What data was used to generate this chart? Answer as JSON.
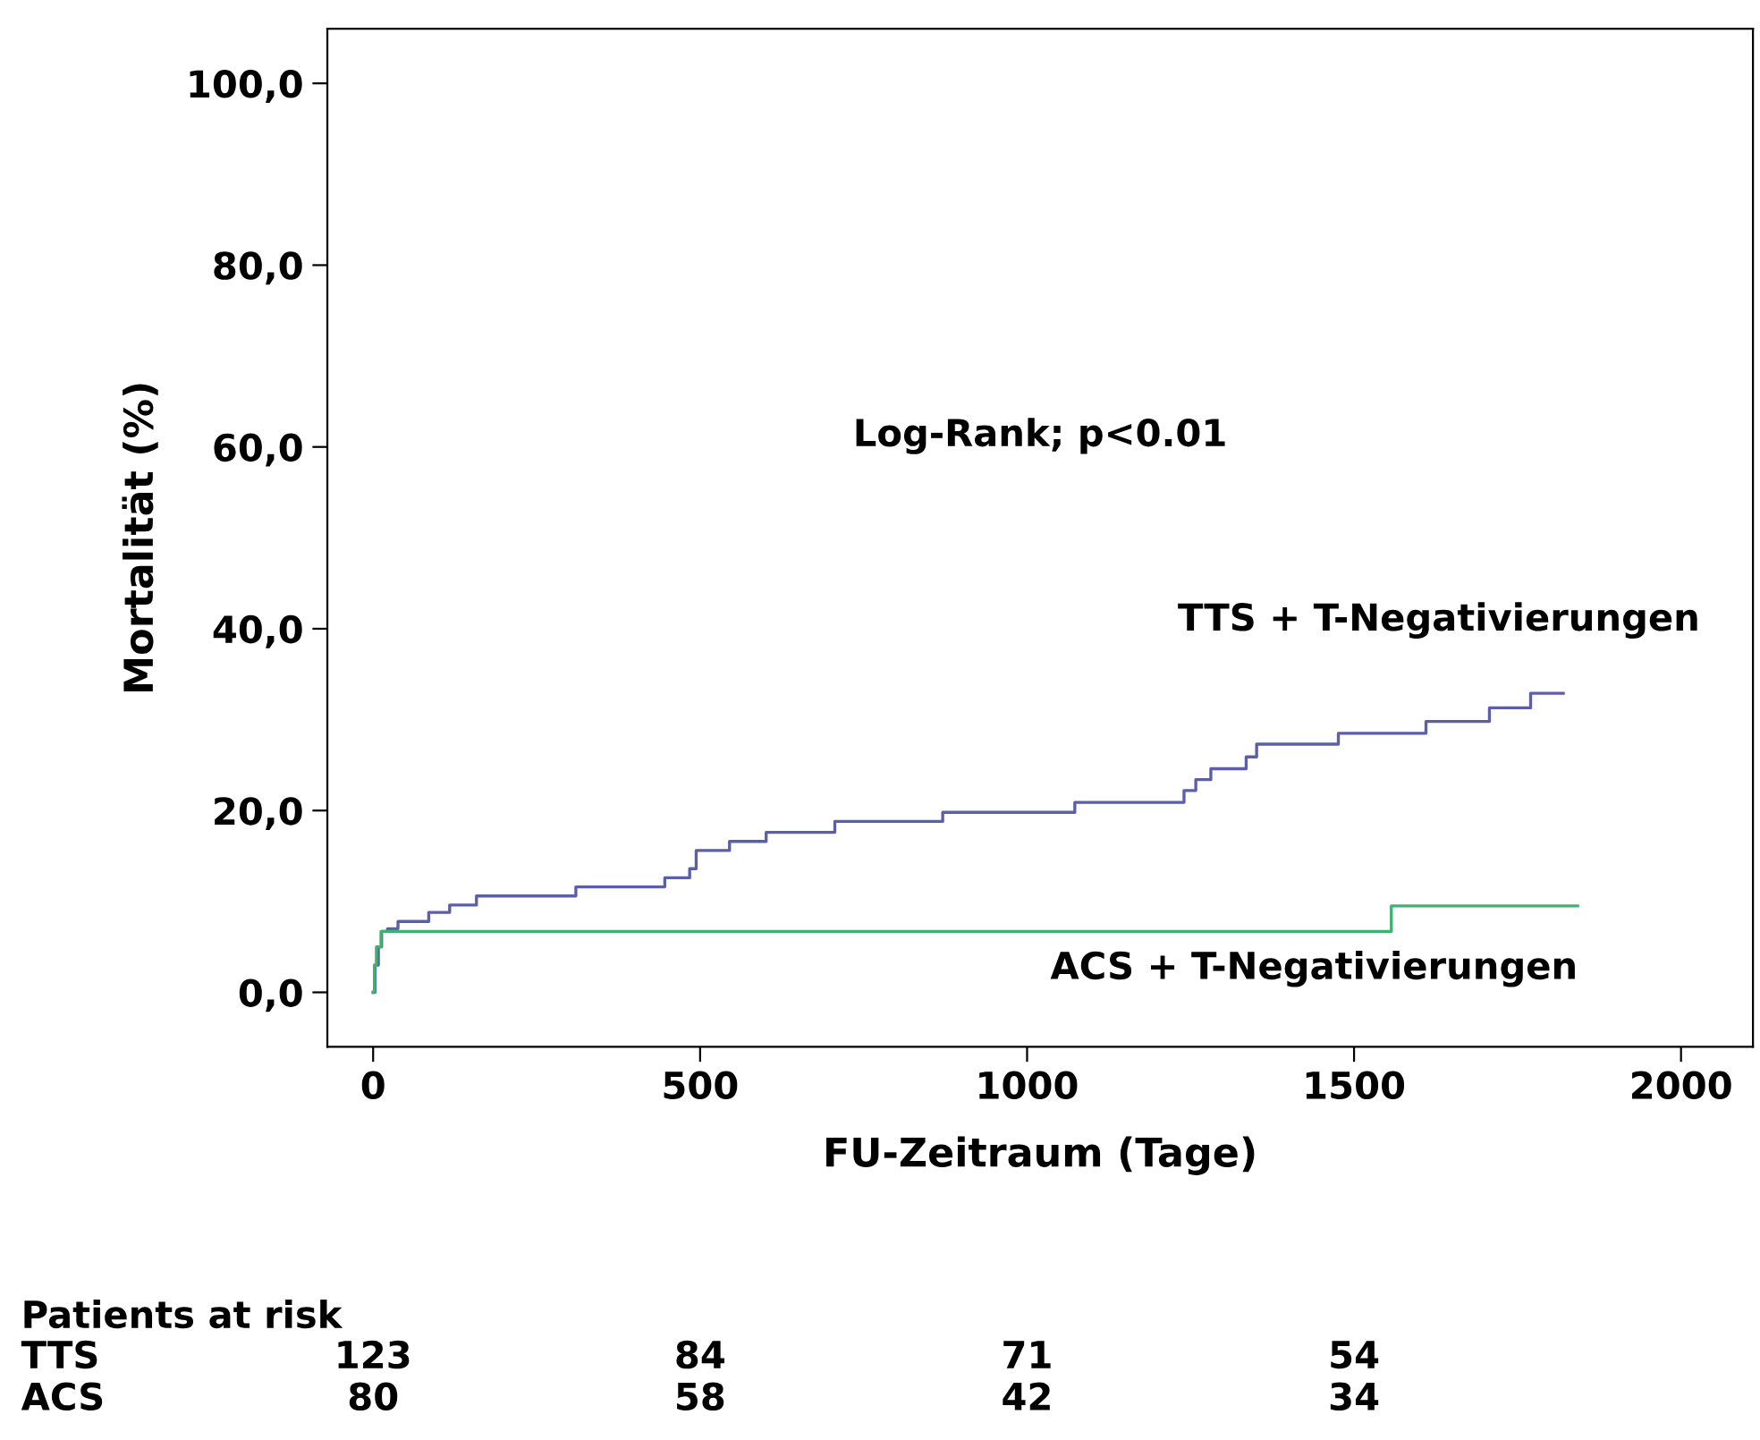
{
  "chart_data": {
    "type": "step",
    "xlabel": "FU-Zeitraum (Tage)",
    "ylabel": "Mortalität (%)",
    "xlim": [
      -70,
      2110
    ],
    "xticks": [
      0,
      500,
      1000,
      1500,
      2000
    ],
    "ylim": [
      -6,
      106
    ],
    "yticks": [
      {
        "value": 0,
        "label": "0,0"
      },
      {
        "value": 20,
        "label": "20,0"
      },
      {
        "value": 40,
        "label": "40,0"
      },
      {
        "value": 60,
        "label": "60,0"
      },
      {
        "value": 80,
        "label": "80,0"
      },
      {
        "value": 100,
        "label": "100,0"
      }
    ],
    "grid": false,
    "legend": false,
    "marker": "none",
    "line_style": "solid",
    "series": [
      {
        "name": "TTS + T-Negativierungen",
        "color": "#5a5fa8",
        "x": [
          0,
          3,
          8,
          13,
          22,
          38,
          85,
          117,
          158,
          310,
          446,
          484,
          494,
          545,
          601,
          706,
          871,
          1073,
          1240,
          1258,
          1281,
          1335,
          1351,
          1476,
          1610,
          1707,
          1770,
          1820
        ],
        "values": [
          0,
          3,
          5,
          6.7,
          7.0,
          7.8,
          8.8,
          9.6,
          10.6,
          11.6,
          12.6,
          13.6,
          15.6,
          16.6,
          17.6,
          18.8,
          19.8,
          20.9,
          22.2,
          23.4,
          24.6,
          25.9,
          27.3,
          28.5,
          29.8,
          31.3,
          32.9,
          32.9
        ]
      },
      {
        "name": "ACS + T-Negativierungen",
        "color": "#3cb371",
        "x": [
          0,
          2,
          5,
          12,
          1557,
          1842
        ],
        "values": [
          0,
          3,
          5,
          6.7,
          9.5,
          9.5
        ]
      }
    ],
    "annotations": [
      "Log-Rank; p<0.01",
      "Patients at risk",
      "TTS",
      "123",
      "84",
      "71",
      "54",
      "ACS",
      "80",
      "58",
      "42",
      "34"
    ]
  }
}
